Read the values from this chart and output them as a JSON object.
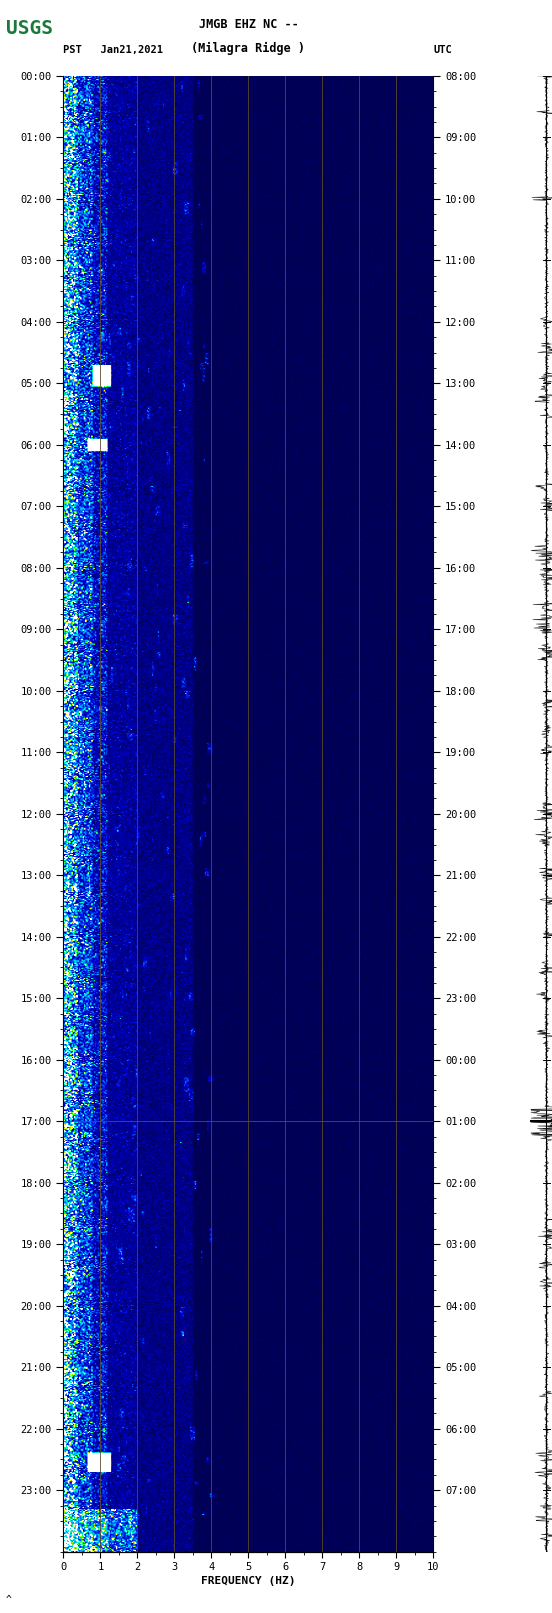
{
  "title_line1": "JMGB EHZ NC --",
  "title_line2": "(Milagra Ridge )",
  "date_label": "PST   Jan21,2021",
  "utc_label": "UTC",
  "xlabel": "FREQUENCY (HZ)",
  "xticks": [
    0,
    1,
    2,
    3,
    4,
    5,
    6,
    7,
    8,
    9,
    10
  ],
  "left_yticks_hours": [
    0,
    1,
    2,
    3,
    4,
    5,
    6,
    7,
    8,
    9,
    10,
    11,
    12,
    13,
    14,
    15,
    16,
    17,
    18,
    19,
    20,
    21,
    22,
    23
  ],
  "right_yticks_hours": [
    "08:00",
    "09:00",
    "10:00",
    "11:00",
    "12:00",
    "13:00",
    "14:00",
    "15:00",
    "16:00",
    "17:00",
    "18:00",
    "19:00",
    "20:00",
    "21:00",
    "22:00",
    "23:00",
    "00:00",
    "01:00",
    "02:00",
    "03:00",
    "04:00",
    "05:00",
    "06:00",
    "07:00"
  ],
  "freq_min": 0,
  "freq_max": 10,
  "time_hours": 24,
  "background_color": "#ffffff",
  "fig_width": 5.52,
  "fig_height": 16.13,
  "dpi": 100,
  "usgs_color": "#1a7a3c",
  "grid_color": "#5a4a2a",
  "red_line_hour": 17.0,
  "cmap_colors": [
    [
      0.0,
      "#000050"
    ],
    [
      0.08,
      "#000090"
    ],
    [
      0.18,
      "#0000c8"
    ],
    [
      0.3,
      "#0030e0"
    ],
    [
      0.44,
      "#0070ff"
    ],
    [
      0.58,
      "#00b0ff"
    ],
    [
      0.7,
      "#00e8e8"
    ],
    [
      0.8,
      "#00ff80"
    ],
    [
      0.88,
      "#80ff00"
    ],
    [
      0.94,
      "#ffff00"
    ],
    [
      1.0,
      "#ffffff"
    ]
  ]
}
